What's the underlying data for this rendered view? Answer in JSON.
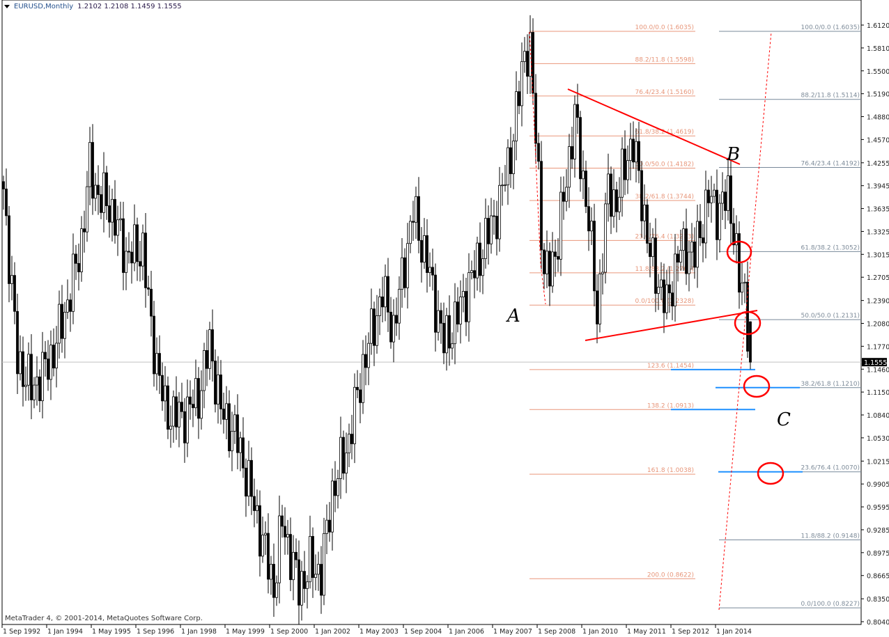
{
  "header": {
    "symbol": "EURUSD,Monthly",
    "ohlc": "1.2102 1.2108 1.1459 1.1555"
  },
  "footer": {
    "copyright": "MetaTrader 4, © 2001-2014, MetaQuotes Software Corp."
  },
  "colors": {
    "bull_body": "#ffffff",
    "bear_body": "#000000",
    "candle_outline": "#000000",
    "fib_primary": "#e9967a",
    "fib_secondary": "#778899",
    "extension_highlight": "#1e90ff",
    "annotation": "#ff0000",
    "price_line": "#c0c0c0"
  },
  "chart_data": {
    "type": "candlestick",
    "symbol": "EURUSD",
    "timeframe": "Monthly",
    "ylim": [
      0.804,
      1.612
    ],
    "grid": false,
    "current_price": "1.1555",
    "last_bar": {
      "date": "2015-01",
      "open": 1.2102,
      "high": 1.2108,
      "low": 1.1459,
      "close": 1.1555
    },
    "approx_closes": [
      [
        "1992-09",
        1.39
      ],
      [
        "1993-02",
        1.16
      ],
      [
        "1993-07",
        1.12
      ],
      [
        "1993-11",
        1.14
      ],
      [
        "1994-03",
        1.17
      ],
      [
        "1994-09",
        1.25
      ],
      [
        "1995-01",
        1.32
      ],
      [
        "1995-04",
        1.42
      ],
      [
        "1995-07",
        1.38
      ],
      [
        "1995-11",
        1.37
      ],
      [
        "1996-05",
        1.3
      ],
      [
        "1996-11",
        1.31
      ],
      [
        "1997-02",
        1.2
      ],
      [
        "1997-07",
        1.09
      ],
      [
        "1998-01",
        1.08
      ],
      [
        "1998-07",
        1.11
      ],
      [
        "1998-11",
        1.18
      ],
      [
        "1999-03",
        1.09
      ],
      [
        "1999-09",
        1.05
      ],
      [
        "2000-03",
        0.96
      ],
      [
        "2000-10",
        0.85
      ],
      [
        "2001-01",
        0.94
      ],
      [
        "2001-07",
        0.85
      ],
      [
        "2001-11",
        0.88
      ],
      [
        "2002-03",
        0.87
      ],
      [
        "2002-07",
        0.98
      ],
      [
        "2003-01",
        1.05
      ],
      [
        "2003-06",
        1.15
      ],
      [
        "2004-01",
        1.25
      ],
      [
        "2004-05",
        1.2
      ],
      [
        "2004-12",
        1.36
      ],
      [
        "2005-05",
        1.29
      ],
      [
        "2005-11",
        1.18
      ],
      [
        "2006-03",
        1.21
      ],
      [
        "2006-09",
        1.27
      ],
      [
        "2007-01",
        1.31
      ],
      [
        "2007-07",
        1.37
      ],
      [
        "2007-12",
        1.46
      ],
      [
        "2008-04",
        1.58
      ],
      [
        "2008-06",
        1.57
      ],
      [
        "2008-09",
        1.41
      ],
      [
        "2008-11",
        1.27
      ],
      [
        "2009-01",
        1.28
      ],
      [
        "2009-04",
        1.32
      ],
      [
        "2009-10",
        1.49
      ],
      [
        "2009-12",
        1.43
      ],
      [
        "2010-03",
        1.35
      ],
      [
        "2010-06",
        1.22
      ],
      [
        "2010-10",
        1.39
      ],
      [
        "2011-01",
        1.37
      ],
      [
        "2011-05",
        1.44
      ],
      [
        "2011-07",
        1.45
      ],
      [
        "2011-10",
        1.38
      ],
      [
        "2012-01",
        1.3
      ],
      [
        "2012-07",
        1.23
      ],
      [
        "2012-11",
        1.3
      ],
      [
        "2013-02",
        1.31
      ],
      [
        "2013-05",
        1.3
      ],
      [
        "2013-10",
        1.38
      ],
      [
        "2014-01",
        1.36
      ],
      [
        "2014-05",
        1.38
      ],
      [
        "2014-07",
        1.34
      ],
      [
        "2014-09",
        1.26
      ],
      [
        "2014-11",
        1.25
      ],
      [
        "2014-12",
        1.21
      ],
      [
        "2015-01",
        1.1555
      ]
    ],
    "y_ticks": [
      "1.6120",
      "1.5810",
      "1.5500",
      "1.5190",
      "1.4880",
      "1.4570",
      "1.4255",
      "1.3945",
      "1.3635",
      "1.3325",
      "1.3015",
      "1.2705",
      "1.2390",
      "1.2080",
      "1.1770",
      "1.1460",
      "1.1150",
      "1.0840",
      "1.0530",
      "1.0215",
      "0.9905",
      "0.9595",
      "0.9285",
      "0.8975",
      "0.8665",
      "0.8350",
      "0.8040"
    ],
    "x_ticks": [
      [
        "1992-09",
        "1 Sep 1992"
      ],
      [
        "1994-01",
        "1 Jan 1994"
      ],
      [
        "1995-05",
        "1 May 1995"
      ],
      [
        "1996-09",
        "1 Sep 1996"
      ],
      [
        "1998-01",
        "1 Jan 1998"
      ],
      [
        "1999-05",
        "1 May 1999"
      ],
      [
        "2000-09",
        "1 Sep 2000"
      ],
      [
        "2002-01",
        "1 Jan 2002"
      ],
      [
        "2003-05",
        "1 May 2003"
      ],
      [
        "2004-09",
        "1 Sep 2004"
      ],
      [
        "2006-01",
        "1 Jan 2006"
      ],
      [
        "2007-05",
        "1 May 2007"
      ],
      [
        "2008-09",
        "1 Sep 2008"
      ],
      [
        "2010-01",
        "1 Jan 2010"
      ],
      [
        "2011-05",
        "1 May 2011"
      ],
      [
        "2012-09",
        "1 Sep 2012"
      ],
      [
        "2014-01",
        "1 Jan 2014"
      ]
    ],
    "fib_primary": [
      {
        "label": "100.0/0.0 (1.6035)",
        "price": 1.6035
      },
      {
        "label": "88.2/11.8 (1.5598)",
        "price": 1.5598
      },
      {
        "label": "76.4/23.4 (1.5160)",
        "price": 1.516
      },
      {
        "label": "61.8/38.2 (1.4619)",
        "price": 1.4619
      },
      {
        "label": "50.0/50.0 (1.4182)",
        "price": 1.4182
      },
      {
        "label": "38.2/61.8 (1.3744)",
        "price": 1.3744
      },
      {
        "label": "23.6/76.4 (1.3203)",
        "price": 1.3203
      },
      {
        "label": "11.8/88.2 (1.2765)",
        "price": 1.2765
      },
      {
        "label": "0.0/100.0 (1.2328)",
        "price": 1.2328
      },
      {
        "label": "123.6 (1.1454)",
        "price": 1.1454,
        "highlight": true
      },
      {
        "label": "138.2 (1.0913)",
        "price": 1.0913,
        "highlight": true
      },
      {
        "label": "161.8 (1.0038)",
        "price": 1.0038
      },
      {
        "label": "200.0 (0.8622)",
        "price": 0.8622
      }
    ],
    "fib_secondary": [
      {
        "label": "100.0/0.0 (1.6035)",
        "price": 1.6035
      },
      {
        "label": "88.2/11.8 (1.5114)",
        "price": 1.5114
      },
      {
        "label": "76.4/23.4 (1.4192)",
        "price": 1.4192
      },
      {
        "label": "61.8/38.2 (1.3052)",
        "price": 1.3052
      },
      {
        "label": "50.0/50.0 (1.2131)",
        "price": 1.2131
      },
      {
        "label": "38.2/61.8 (1.1210)",
        "price": 1.121,
        "highlight": true
      },
      {
        "label": "23.6/76.4 (1.0070)",
        "price": 1.007,
        "highlight": true
      },
      {
        "label": "11.8/88.2 (0.9148)",
        "price": 0.9148
      },
      {
        "label": "0.0/100.0 (0.8227)",
        "price": 0.8227
      }
    ],
    "annotations": {
      "wave_labels": [
        "A",
        "B",
        "C"
      ]
    }
  }
}
